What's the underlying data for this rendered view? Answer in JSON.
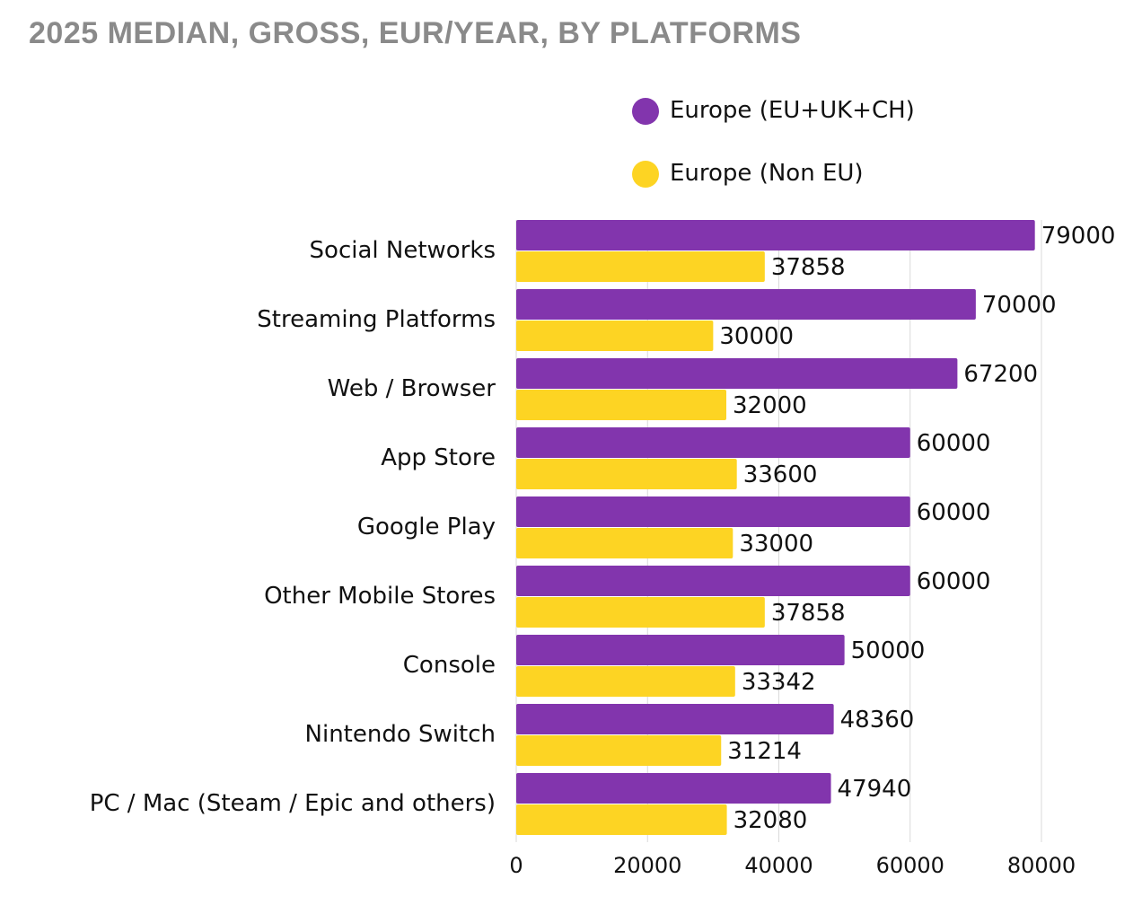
{
  "chart_data": {
    "type": "bar",
    "orientation": "horizontal",
    "title": "2025 MEDIAN, GROSS, EUR/YEAR, BY PLATFORMS",
    "categories": [
      "Social Networks",
      "Streaming Platforms",
      "Web / Browser",
      "App Store",
      "Google Play",
      "Other Mobile Stores",
      "Console",
      "Nintendo Switch",
      "PC / Mac (Steam / Epic and others)"
    ],
    "series": [
      {
        "name": "Europe (EU+UK+CH)",
        "color": "#8235ad",
        "values": [
          79000,
          70000,
          67200,
          60000,
          60000,
          60000,
          50000,
          48360,
          47940
        ]
      },
      {
        "name": "Europe (Non EU)",
        "color": "#fdd423",
        "values": [
          37858,
          30000,
          32000,
          33600,
          33000,
          37858,
          33342,
          31214,
          32080
        ]
      }
    ],
    "xlim": [
      0,
      80000
    ],
    "xticks": [
      0,
      20000,
      40000,
      60000,
      80000
    ],
    "xlabel": "",
    "ylabel": "",
    "grid": true,
    "legend_position": "top-right"
  }
}
